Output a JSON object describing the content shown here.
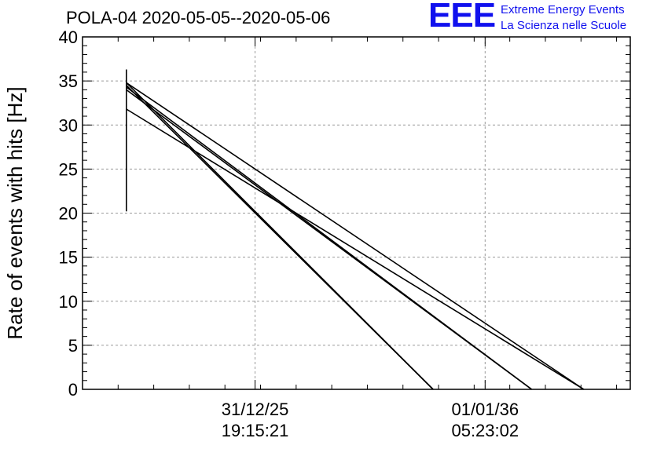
{
  "chart_data": {
    "type": "line",
    "title": "POLA-04 2020-05-05--2020-05-06",
    "ylabel": "Rate of events with hits [Hz]",
    "xlabel": "",
    "ylim": [
      0,
      40
    ],
    "yticks": [
      0,
      5,
      10,
      15,
      20,
      25,
      30,
      35,
      40
    ],
    "x_tick_labels": [
      {
        "date": "31/12/25",
        "time": "19:15:21"
      },
      {
        "date": "01/01/36",
        "time": "05:23:02"
      }
    ],
    "grid": true,
    "series_note": "Nearly straight descending traces from ~35 Hz to 0 Hz; x positions given as fraction of the x axis span",
    "series": [
      {
        "values": [
          [
            0.08,
            36.3
          ],
          [
            0.08,
            20.2
          ]
        ]
      },
      {
        "values": [
          [
            0.08,
            34.8
          ],
          [
            0.64,
            0
          ]
        ]
      },
      {
        "values": [
          [
            0.08,
            34.5
          ],
          [
            0.64,
            0
          ]
        ]
      },
      {
        "values": [
          [
            0.08,
            34.3
          ],
          [
            0.82,
            0
          ]
        ]
      },
      {
        "values": [
          [
            0.08,
            34.0
          ],
          [
            0.82,
            0
          ]
        ]
      },
      {
        "values": [
          [
            0.08,
            34.8
          ],
          [
            0.915,
            0
          ]
        ]
      },
      {
        "values": [
          [
            0.08,
            31.8
          ],
          [
            0.915,
            0
          ]
        ]
      }
    ]
  },
  "legend_logo": {
    "mark": "EEE",
    "line1": "Extreme Energy Events",
    "line2": "La Scienza nelle Scuole"
  },
  "colors": {
    "series": "#000000",
    "grid": "#9a9a9a",
    "logo": "#1010ee"
  }
}
